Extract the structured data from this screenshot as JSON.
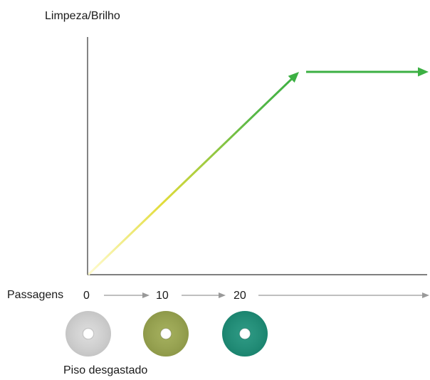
{
  "chart_data": {
    "type": "line",
    "ylabel": "Limpeza/Brilho",
    "xlabel": "Passagens",
    "xticks": [
      "0",
      "10",
      "20"
    ],
    "series": [
      {
        "x": [
          0,
          20,
          30
        ],
        "y": [
          0,
          1,
          1
        ]
      }
    ],
    "ylim": [
      0,
      1.3
    ],
    "grid": false,
    "line_gradient": [
      "#fffbd0",
      "#e2dc3a",
      "#58b847",
      "#3cb043"
    ],
    "x_arrow_color": "#999999",
    "footnote": "Piso desgastado",
    "pads": [
      {
        "pass": 0,
        "icon": "white-floor-pad-icon",
        "color": "#d6d6d6"
      },
      {
        "pass": 10,
        "icon": "olive-floor-pad-icon",
        "color": "#9aa64f"
      },
      {
        "pass": 20,
        "icon": "teal-floor-pad-icon",
        "color": "#1d8f78"
      }
    ]
  }
}
